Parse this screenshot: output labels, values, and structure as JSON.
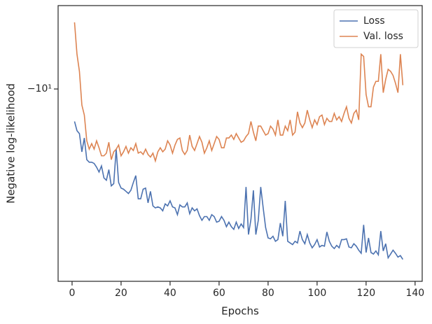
{
  "chart_data": {
    "type": "line",
    "xlabel": "Epochs",
    "ylabel": "Negative log-likelihood",
    "xlim": [
      -5.7,
      142.9
    ],
    "xticks": [
      0,
      20,
      40,
      60,
      80,
      100,
      120,
      140
    ],
    "ylim": [
      -6.4,
      -28
    ],
    "yscale": "symlog",
    "yticks": [
      {
        "value": -10,
        "label": "−10¹"
      }
    ],
    "legend": "upper right",
    "x": [
      1,
      2,
      3,
      4,
      5,
      6,
      7,
      8,
      9,
      10,
      11,
      12,
      13,
      14,
      15,
      16,
      17,
      18,
      19,
      20,
      21,
      22,
      23,
      24,
      25,
      26,
      27,
      28,
      29,
      30,
      31,
      32,
      33,
      34,
      35,
      36,
      37,
      38,
      39,
      40,
      41,
      42,
      43,
      44,
      45,
      46,
      47,
      48,
      49,
      50,
      51,
      52,
      53,
      54,
      55,
      56,
      57,
      58,
      59,
      60,
      61,
      62,
      63,
      64,
      65,
      66,
      67,
      68,
      69,
      70,
      71,
      72,
      73,
      74,
      75,
      76,
      77,
      78,
      79,
      80,
      81,
      82,
      83,
      84,
      85,
      86,
      87,
      88,
      89,
      90,
      91,
      92,
      93,
      94,
      95,
      96,
      97,
      98,
      99,
      100,
      101,
      102,
      103,
      104,
      105,
      106,
      107,
      108,
      109,
      110,
      111,
      112,
      113,
      114,
      115,
      116,
      117,
      118,
      119,
      120,
      121,
      122,
      123,
      124,
      125,
      126,
      127,
      128,
      129,
      130,
      131,
      132,
      133,
      134,
      135
    ],
    "series": [
      {
        "name": "Loss",
        "color": "#4c72b0",
        "values": [
          -11.9,
          -12.5,
          -12.7,
          -14.0,
          -13.0,
          -14.6,
          -14.8,
          -14.8,
          -14.9,
          -15.2,
          -15.6,
          -15.1,
          -16.1,
          -16.3,
          -15.4,
          -16.8,
          -16.6,
          -13.8,
          -16.5,
          -17.0,
          -17.1,
          -17.3,
          -17.5,
          -17.2,
          -16.5,
          -15.9,
          -18.0,
          -18.0,
          -17.1,
          -17.0,
          -18.4,
          -17.3,
          -18.7,
          -18.9,
          -18.8,
          -18.9,
          -19.2,
          -18.5,
          -18.7,
          -18.2,
          -18.8,
          -18.9,
          -19.6,
          -18.6,
          -18.8,
          -18.8,
          -18.4,
          -19.5,
          -18.9,
          -19.2,
          -19.0,
          -19.7,
          -20.2,
          -19.8,
          -19.8,
          -20.2,
          -19.6,
          -19.8,
          -20.4,
          -20.3,
          -19.8,
          -20.2,
          -20.9,
          -20.4,
          -20.9,
          -21.2,
          -20.4,
          -21.1,
          -20.6,
          -21.0,
          -16.9,
          -21.8,
          -20.1,
          -17.2,
          -21.8,
          -20.2,
          -16.9,
          -18.9,
          -21.0,
          -22.2,
          -22.3,
          -22.0,
          -22.6,
          -22.4,
          -20.5,
          -22.0,
          -18.2,
          -22.6,
          -22.8,
          -23.0,
          -22.6,
          -22.8,
          -21.4,
          -22.4,
          -22.9,
          -21.8,
          -22.8,
          -23.4,
          -23.0,
          -22.4,
          -23.3,
          -23.1,
          -23.2,
          -21.5,
          -22.6,
          -23.2,
          -23.5,
          -23.1,
          -23.4,
          -22.4,
          -22.4,
          -22.3,
          -23.3,
          -23.4,
          -22.9,
          -23.2,
          -23.7,
          -24.1,
          -20.7,
          -24.0,
          -22.2,
          -24.0,
          -24.2,
          -23.8,
          -24.3,
          -21.4,
          -23.8,
          -22.9,
          -24.7,
          -24.2,
          -23.7,
          -24.1,
          -24.6,
          -24.4,
          -24.9
        ]
      },
      {
        "name": "Val. loss",
        "color": "#dd8452",
        "values": [
          -7.0,
          -8.3,
          -9.1,
          -10.9,
          -11.5,
          -13.2,
          -13.8,
          -13.4,
          -13.8,
          -13.2,
          -13.7,
          -14.3,
          -14.3,
          -14.1,
          -13.3,
          -14.6,
          -14.0,
          -13.8,
          -13.5,
          -14.3,
          -14.0,
          -13.6,
          -14.1,
          -13.7,
          -13.9,
          -13.4,
          -14.1,
          -14.0,
          -14.2,
          -13.8,
          -14.2,
          -14.4,
          -14.1,
          -14.7,
          -14.0,
          -13.7,
          -14.0,
          -13.8,
          -13.2,
          -13.5,
          -14.1,
          -13.5,
          -13.1,
          -13.0,
          -13.9,
          -14.2,
          -13.9,
          -12.8,
          -13.6,
          -13.9,
          -13.4,
          -12.9,
          -13.3,
          -14.1,
          -13.7,
          -13.2,
          -13.9,
          -13.4,
          -12.9,
          -13.1,
          -13.7,
          -13.7,
          -13.0,
          -13.0,
          -12.8,
          -13.1,
          -12.7,
          -13.0,
          -13.3,
          -13.2,
          -12.9,
          -12.7,
          -11.9,
          -12.6,
          -13.2,
          -12.2,
          -12.2,
          -12.5,
          -12.8,
          -12.7,
          -12.2,
          -12.4,
          -12.8,
          -11.8,
          -12.8,
          -12.8,
          -12.2,
          -12.5,
          -11.8,
          -12.8,
          -12.6,
          -11.3,
          -12.0,
          -12.3,
          -12.0,
          -11.2,
          -11.8,
          -12.3,
          -11.8,
          -12.1,
          -11.6,
          -11.5,
          -12.1,
          -11.7,
          -11.9,
          -11.9,
          -11.4,
          -11.8,
          -11.6,
          -11.9,
          -11.4,
          -11.0,
          -11.7,
          -12.0,
          -11.4,
          -11.2,
          -11.8,
          -8.3,
          -8.4,
          -10.3,
          -11.0,
          -11.0,
          -9.9,
          -9.6,
          -9.6,
          -8.3,
          -10.2,
          -9.5,
          -9.0,
          -9.1,
          -9.3,
          -9.7,
          -10.2,
          -8.3,
          -9.8
        ]
      }
    ]
  }
}
